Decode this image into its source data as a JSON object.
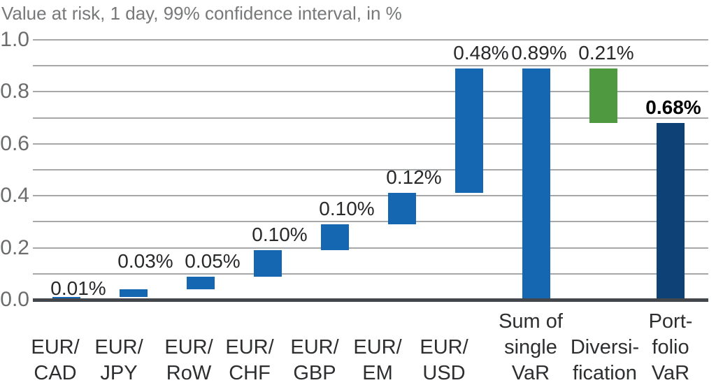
{
  "chart_data": {
    "type": "bar",
    "subtype": "waterfall",
    "title": "Value at risk, 1 day, 99% confidence interval, in %",
    "legend": "none",
    "grid": true,
    "y_axis": {
      "min": 0.0,
      "max": 1.0,
      "major_ticks": [
        {
          "label": "1.0",
          "value": 1.0
        },
        {
          "label": "0.8",
          "value": 0.8
        },
        {
          "label": "0.6",
          "value": 0.6
        },
        {
          "label": "0.4",
          "value": 0.4
        },
        {
          "label": "0.2",
          "value": 0.2
        },
        {
          "label": "0.0",
          "value": 0.0
        }
      ],
      "minor_gridline_values": [
        0.9,
        0.7,
        0.5,
        0.3,
        0.1
      ]
    },
    "bars": [
      {
        "category": "EUR/CAD",
        "lines": [
          "EUR/",
          "CAD"
        ],
        "value": 0.01,
        "display": "0.01%",
        "start": 0.0,
        "end": 0.01,
        "color_key": "blue",
        "label_bold": false
      },
      {
        "category": "EUR/JPY",
        "lines": [
          "EUR/",
          "JPY"
        ],
        "value": 0.03,
        "display": "0.03%",
        "start": 0.01,
        "end": 0.04,
        "color_key": "blue",
        "label_bold": false
      },
      {
        "category": "EUR/RoW",
        "lines": [
          "EUR/",
          "RoW"
        ],
        "value": 0.05,
        "display": "0.05%",
        "start": 0.04,
        "end": 0.09,
        "color_key": "blue",
        "label_bold": false
      },
      {
        "category": "EUR/CHF",
        "lines": [
          "EUR/",
          "CHF"
        ],
        "value": 0.1,
        "display": "0.10%",
        "start": 0.09,
        "end": 0.19,
        "color_key": "blue",
        "label_bold": false
      },
      {
        "category": "EUR/GBP",
        "lines": [
          "EUR/",
          "GBP"
        ],
        "value": 0.1,
        "display": "0.10%",
        "start": 0.19,
        "end": 0.29,
        "color_key": "blue",
        "label_bold": false
      },
      {
        "category": "EUR/EM",
        "lines": [
          "EUR/",
          "EM"
        ],
        "value": 0.12,
        "display": "0.12%",
        "start": 0.29,
        "end": 0.41,
        "color_key": "blue",
        "label_bold": false
      },
      {
        "category": "EUR/USD",
        "lines": [
          "EUR/",
          "USD"
        ],
        "value": 0.48,
        "display": "0.48%",
        "start": 0.41,
        "end": 0.89,
        "color_key": "blue",
        "label_bold": false
      },
      {
        "category": "Sum of single VaR",
        "lines": [
          "Sum of",
          "single",
          "VaR"
        ],
        "value": 0.89,
        "display": "0.89%",
        "start": 0.0,
        "end": 0.89,
        "color_key": "blue",
        "label_bold": false
      },
      {
        "category": "Diversification",
        "lines": [
          "Diversi-",
          "fication"
        ],
        "value": -0.21,
        "display": "0.21%",
        "start": 0.68,
        "end": 0.89,
        "color_key": "green",
        "label_bold": false
      },
      {
        "category": "Portfolio VaR",
        "lines": [
          "Port-",
          "folio",
          "VaR"
        ],
        "value": 0.68,
        "display": "0.68%",
        "start": 0.0,
        "end": 0.68,
        "color_key": "navy",
        "label_bold": true
      }
    ],
    "colors": {
      "bar_blue": "#1667b1",
      "bar_green": "#4f9a41",
      "bar_navy": "#0e4176",
      "gridline": "#a7a8aa",
      "axis_line": "#43464a",
      "title_text": "#77787a",
      "tick_text": "#6b6c6e",
      "value_text": "#28292b",
      "value_text_bold": "#000000",
      "category_text": "#2d2e30"
    }
  }
}
